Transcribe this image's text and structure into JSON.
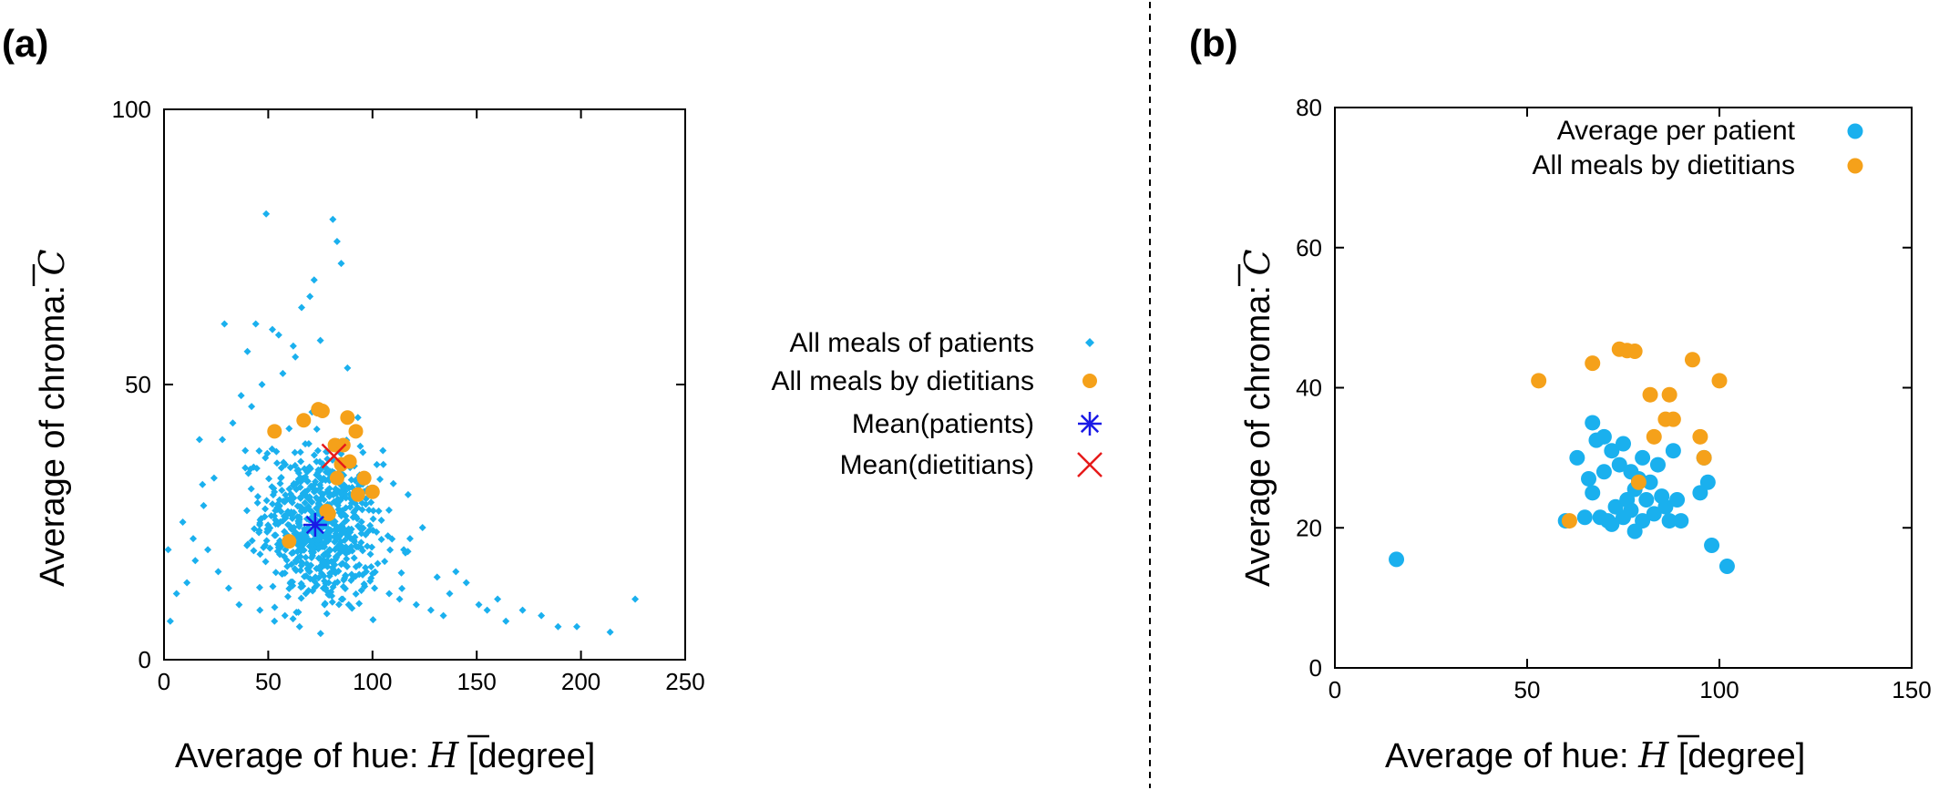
{
  "panel_labels": [
    "(a)",
    "(b)"
  ],
  "chart_data": [
    {
      "type": "scatter",
      "panel": "(a)",
      "xlabel": "Average of hue: H̄ [degree]",
      "ylabel": "Average of chroma: C̄",
      "xlabel_parts": {
        "prefix": "Average of hue: ",
        "symbol": "H",
        "suffix": " [degree]"
      },
      "ylabel_parts": {
        "prefix": "Average of chroma: ",
        "symbol": "C"
      },
      "xlim": [
        0,
        250
      ],
      "ylim": [
        0,
        100
      ],
      "xticks": [
        0,
        50,
        100,
        150,
        200,
        250
      ],
      "yticks": [
        0,
        50,
        100
      ],
      "grid": false,
      "legend": "right-outside",
      "series": [
        {
          "name": "All meals of patients",
          "marker": "small-diamond",
          "color": "#1ab0ee",
          "x": [
            49,
            81,
            83,
            85,
            72,
            70,
            66,
            44,
            52,
            75,
            29,
            40,
            55,
            62,
            88,
            63,
            57,
            47,
            37,
            17,
            19,
            33,
            42,
            93,
            105,
            110,
            124,
            118,
            140,
            145,
            160,
            172,
            181,
            198,
            214,
            226,
            3,
            6,
            11,
            15,
            21,
            26,
            31,
            36,
            46,
            53,
            58,
            65,
            68,
            77,
            79,
            91,
            97,
            101,
            108,
            113,
            121,
            128,
            134,
            151,
            164,
            189,
            2,
            9,
            14,
            24,
            28,
            39,
            43,
            60,
            71,
            86,
            99,
            103,
            115,
            131,
            137,
            155
          ],
          "y": [
            81,
            80,
            76,
            72,
            69,
            66,
            64,
            61,
            60,
            58,
            61,
            56,
            59,
            57,
            53,
            55,
            52,
            50,
            48,
            40,
            28,
            43,
            46,
            44,
            38,
            32,
            24,
            22,
            16,
            14,
            11,
            9,
            8,
            6,
            5,
            11,
            7,
            12,
            14,
            18,
            20,
            16,
            13,
            10,
            9,
            7,
            8,
            6,
            12,
            10,
            14,
            15,
            16,
            13,
            12,
            11,
            10,
            9,
            8,
            10,
            7,
            6,
            20,
            25,
            22,
            33,
            40,
            38,
            35,
            42,
            45,
            39,
            30,
            27,
            20,
            15,
            12,
            9
          ],
          "dense_cluster": {
            "center": [
              75,
              24
            ],
            "count": 700,
            "sd": [
              14,
              7
            ]
          }
        },
        {
          "name": "All meals by dietitians",
          "marker": "circle",
          "color": "#f5a11a",
          "x": [
            53,
            60,
            67,
            74,
            76,
            78,
            79,
            82,
            83,
            85,
            86,
            88,
            89,
            92,
            93,
            96,
            100
          ],
          "y": [
            41.5,
            21.5,
            43.5,
            45.5,
            45.2,
            27,
            26.5,
            39,
            33,
            35.5,
            39,
            44,
            36,
            41.5,
            30,
            33,
            30.5
          ]
        },
        {
          "name": "Mean(patients)",
          "marker": "asterisk",
          "color": "#1a1ae6",
          "x": [
            72.5
          ],
          "y": [
            24.5
          ]
        },
        {
          "name": "Mean(dietitians)",
          "marker": "cross",
          "color": "#e61a1a",
          "x": [
            81.5
          ],
          "y": [
            37
          ]
        }
      ]
    },
    {
      "type": "scatter",
      "panel": "(b)",
      "xlabel": "Average of hue: H̄ [degree]",
      "ylabel": "Average of chroma: C̄",
      "xlabel_parts": {
        "prefix": "Average of hue: ",
        "symbol": "H",
        "suffix": " [degree]"
      },
      "ylabel_parts": {
        "prefix": "Average of chroma: ",
        "symbol": "C"
      },
      "xlim": [
        0,
        150
      ],
      "ylim": [
        0,
        80
      ],
      "xticks": [
        0,
        50,
        100,
        150
      ],
      "yticks": [
        0,
        20,
        40,
        60,
        80
      ],
      "grid": false,
      "legend": "top-right",
      "series": [
        {
          "name": "Average per patient",
          "marker": "circle",
          "color": "#1ab0ee",
          "x": [
            16,
            60,
            63,
            65,
            66,
            67,
            67,
            68,
            69,
            70,
            70,
            71,
            72,
            72,
            73,
            74,
            75,
            75,
            76,
            77,
            77,
            78,
            78,
            79,
            80,
            80,
            81,
            82,
            83,
            84,
            85,
            86,
            87,
            88,
            89,
            90,
            95,
            96,
            97,
            98,
            102
          ],
          "y": [
            15.5,
            21,
            30,
            21.5,
            27,
            35,
            25,
            32.5,
            21.5,
            28,
            33,
            21,
            31,
            20.5,
            23,
            29,
            21.5,
            32,
            24,
            22.5,
            28,
            19.5,
            25.5,
            27,
            21,
            30,
            24,
            26.5,
            22,
            29,
            24.5,
            23,
            21,
            31,
            24,
            21,
            25,
            30,
            26.5,
            17.5,
            14.5
          ]
        },
        {
          "name": "All meals by dietitians",
          "marker": "circle",
          "color": "#f5a11a",
          "x": [
            53,
            61,
            67,
            74,
            76,
            78,
            79,
            82,
            83,
            86,
            87,
            88,
            93,
            95,
            96,
            100
          ],
          "y": [
            41,
            21,
            43.5,
            45.5,
            45.3,
            45.2,
            26.5,
            39,
            33,
            35.5,
            39,
            35.5,
            44,
            33,
            30,
            41
          ]
        }
      ]
    }
  ]
}
